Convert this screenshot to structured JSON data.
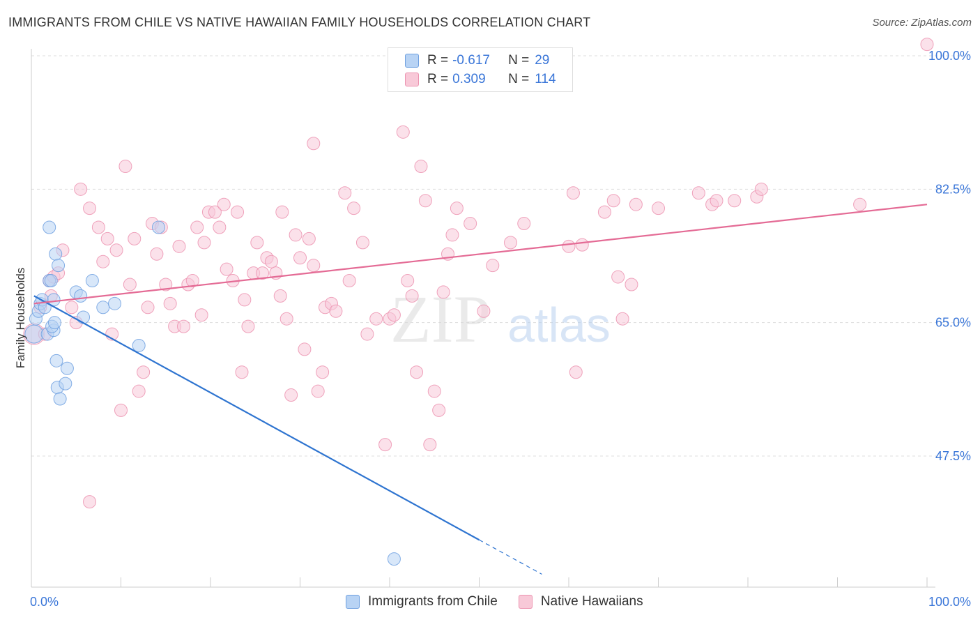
{
  "title": "IMMIGRANTS FROM CHILE VS NATIVE HAWAIIAN FAMILY HOUSEHOLDS CORRELATION CHART",
  "source": "Source: ZipAtlas.com",
  "watermark": {
    "zip": "ZIP",
    "atlas": "atlas"
  },
  "legend": {
    "rows": [
      {
        "r_label": "R =",
        "r_value": "-0.617",
        "n_label": "N =",
        "n_value": "29"
      },
      {
        "r_label": "R =",
        "r_value": "0.309",
        "n_label": "N =",
        "n_value": "114"
      }
    ]
  },
  "bottom_legend": [
    "Immigrants from Chile",
    "Native Hawaiians"
  ],
  "chart_data": {
    "type": "scatter",
    "title": "IMMIGRANTS FROM CHILE VS NATIVE HAWAIIAN FAMILY HOUSEHOLDS CORRELATION CHART",
    "xlabel": "",
    "ylabel": "Family Households",
    "xlim": [
      0,
      100
    ],
    "ylim": [
      31.5,
      101.5
    ],
    "x_tick_labels": [
      "0.0%",
      "100.0%"
    ],
    "y_ticks": [
      47.5,
      65.0,
      82.5,
      100.0
    ],
    "y_tick_labels": [
      "47.5%",
      "65.0%",
      "82.5%",
      "100.0%"
    ],
    "grid": true,
    "legend_position": "top-center",
    "colors": {
      "chile": "#6fa0e0",
      "chile_fill": "#b8d3f4",
      "hawaii": "#ec93b0",
      "hawaii_fill": "#f8c9d8",
      "chile_line": "#2e74d0",
      "hawaii_line": "#e46b95",
      "tick_text": "#3a76d8"
    },
    "series": [
      {
        "name": "Immigrants from Chile",
        "trendline": {
          "x": [
            0.3,
            50,
            57
          ],
          "y": [
            68.5,
            36.5,
            32.0
          ]
        },
        "points": [
          [
            0.3,
            63.5,
            12
          ],
          [
            0.5,
            65.5,
            8
          ],
          [
            0.8,
            66.5,
            8
          ],
          [
            1.0,
            67.5,
            8
          ],
          [
            1.2,
            68.0,
            8
          ],
          [
            1.5,
            67.0,
            8
          ],
          [
            1.8,
            63.5,
            8
          ],
          [
            2.0,
            77.5,
            8
          ],
          [
            2.0,
            70.5,
            8
          ],
          [
            2.2,
            70.5,
            8
          ],
          [
            2.5,
            68.0,
            8
          ],
          [
            2.5,
            64.0,
            8
          ],
          [
            2.3,
            64.5,
            8
          ],
          [
            2.6,
            65.0,
            8
          ],
          [
            2.7,
            74.0,
            8
          ],
          [
            3.0,
            72.5,
            8
          ],
          [
            2.8,
            60.0,
            8
          ],
          [
            2.9,
            56.5,
            8
          ],
          [
            3.2,
            55.0,
            8
          ],
          [
            3.8,
            57.0,
            8
          ],
          [
            4.0,
            59.0,
            8
          ],
          [
            5.0,
            69.0,
            8
          ],
          [
            5.5,
            68.5,
            8
          ],
          [
            5.8,
            65.7,
            8
          ],
          [
            6.8,
            70.5,
            8
          ],
          [
            8.0,
            67.0,
            8
          ],
          [
            9.3,
            67.5,
            8
          ],
          [
            12.0,
            62.0,
            8
          ],
          [
            14.2,
            77.5,
            8
          ],
          [
            40.5,
            34.0,
            8
          ]
        ]
      },
      {
        "name": "Native Hawaiians",
        "trendline": {
          "x": [
            0.3,
            100
          ],
          "y": [
            67.5,
            80.5
          ]
        },
        "points": [
          [
            0.3,
            63.5,
            14
          ],
          [
            1.0,
            67.0,
            8
          ],
          [
            1.5,
            63.5,
            8
          ],
          [
            2.0,
            70.5,
            8
          ],
          [
            2.2,
            68.5,
            8
          ],
          [
            2.5,
            71.0,
            8
          ],
          [
            3.0,
            71.5,
            8
          ],
          [
            3.5,
            74.5,
            8
          ],
          [
            4.5,
            67.0,
            8
          ],
          [
            5.0,
            65.0,
            8
          ],
          [
            5.5,
            82.5,
            8
          ],
          [
            6.5,
            80.0,
            8
          ],
          [
            6.5,
            41.5,
            8
          ],
          [
            7.5,
            77.5,
            8
          ],
          [
            8.0,
            73.0,
            8
          ],
          [
            8.5,
            76.0,
            8
          ],
          [
            9.0,
            63.5,
            8
          ],
          [
            9.5,
            74.5,
            8
          ],
          [
            10.0,
            53.5,
            8
          ],
          [
            10.5,
            85.5,
            8
          ],
          [
            11.0,
            70.0,
            8
          ],
          [
            11.5,
            76.0,
            8
          ],
          [
            12.0,
            56.0,
            8
          ],
          [
            12.5,
            58.5,
            8
          ],
          [
            13.0,
            67.0,
            8
          ],
          [
            13.5,
            78.0,
            8
          ],
          [
            14.0,
            74.0,
            8
          ],
          [
            14.5,
            77.5,
            8
          ],
          [
            15.0,
            70.0,
            8
          ],
          [
            15.5,
            67.5,
            8
          ],
          [
            16.0,
            64.5,
            8
          ],
          [
            16.5,
            75.0,
            8
          ],
          [
            17.0,
            64.5,
            8
          ],
          [
            17.5,
            70.0,
            8
          ],
          [
            18.0,
            70.5,
            8
          ],
          [
            18.5,
            77.5,
            8
          ],
          [
            19.0,
            66.0,
            8
          ],
          [
            19.3,
            75.5,
            8
          ],
          [
            19.8,
            79.5,
            8
          ],
          [
            20.5,
            79.5,
            8
          ],
          [
            21.0,
            77.5,
            8
          ],
          [
            21.5,
            80.5,
            8
          ],
          [
            21.8,
            72.0,
            8
          ],
          [
            22.5,
            70.5,
            8
          ],
          [
            23.0,
            79.5,
            8
          ],
          [
            23.5,
            58.5,
            8
          ],
          [
            23.8,
            68.0,
            8
          ],
          [
            24.2,
            64.5,
            8
          ],
          [
            24.8,
            71.5,
            8
          ],
          [
            25.2,
            75.5,
            8
          ],
          [
            25.8,
            71.5,
            8
          ],
          [
            26.3,
            73.5,
            8
          ],
          [
            26.8,
            73.0,
            8
          ],
          [
            27.3,
            71.5,
            8
          ],
          [
            27.8,
            68.5,
            8
          ],
          [
            28.0,
            79.5,
            8
          ],
          [
            28.5,
            65.5,
            8
          ],
          [
            29.0,
            55.5,
            8
          ],
          [
            29.5,
            76.5,
            8
          ],
          [
            30.0,
            73.5,
            8
          ],
          [
            30.5,
            61.5,
            8
          ],
          [
            31.0,
            76.0,
            8
          ],
          [
            31.5,
            72.5,
            8
          ],
          [
            31.5,
            88.5,
            8
          ],
          [
            32.0,
            56.0,
            8
          ],
          [
            32.5,
            58.5,
            8
          ],
          [
            32.8,
            67.0,
            8
          ],
          [
            33.5,
            67.5,
            8
          ],
          [
            34.0,
            66.5,
            8
          ],
          [
            35.0,
            82.0,
            8
          ],
          [
            35.5,
            70.5,
            8
          ],
          [
            36.0,
            80.0,
            8
          ],
          [
            37.0,
            75.5,
            8
          ],
          [
            37.5,
            63.5,
            8
          ],
          [
            38.5,
            65.5,
            8
          ],
          [
            39.5,
            49.0,
            8
          ],
          [
            40.0,
            65.5,
            8
          ],
          [
            40.5,
            66.0,
            8
          ],
          [
            41.5,
            90.0,
            8
          ],
          [
            42.0,
            70.5,
            8
          ],
          [
            42.5,
            68.5,
            8
          ],
          [
            43.0,
            58.5,
            8
          ],
          [
            43.5,
            85.5,
            8
          ],
          [
            44.0,
            81.0,
            8
          ],
          [
            44.5,
            49.0,
            8
          ],
          [
            45.0,
            56.0,
            8
          ],
          [
            45.5,
            53.5,
            8
          ],
          [
            46.0,
            69.0,
            8
          ],
          [
            46.5,
            74.0,
            8
          ],
          [
            47.0,
            76.5,
            8
          ],
          [
            47.5,
            80.0,
            8
          ],
          [
            49.0,
            78.0,
            8
          ],
          [
            50.5,
            66.5,
            8
          ],
          [
            51.5,
            72.5,
            8
          ],
          [
            53.5,
            75.5,
            8
          ],
          [
            55.0,
            78.0,
            8
          ],
          [
            60.0,
            75.0,
            8
          ],
          [
            60.5,
            82.0,
            8
          ],
          [
            60.8,
            58.5,
            8
          ],
          [
            61.5,
            75.2,
            8
          ],
          [
            64.0,
            79.5,
            8
          ],
          [
            65.0,
            81.0,
            8
          ],
          [
            65.5,
            71.0,
            8
          ],
          [
            66.0,
            65.5,
            8
          ],
          [
            67.0,
            70.0,
            8
          ],
          [
            67.5,
            80.5,
            8
          ],
          [
            70.0,
            80.0,
            8
          ],
          [
            74.5,
            82.0,
            8
          ],
          [
            76.0,
            80.5,
            8
          ],
          [
            76.5,
            81.0,
            8
          ],
          [
            78.5,
            81.0,
            8
          ],
          [
            81.0,
            81.5,
            8
          ],
          [
            81.5,
            82.5,
            8
          ],
          [
            92.5,
            80.5,
            8
          ],
          [
            100.0,
            101.5,
            8
          ]
        ]
      }
    ]
  }
}
